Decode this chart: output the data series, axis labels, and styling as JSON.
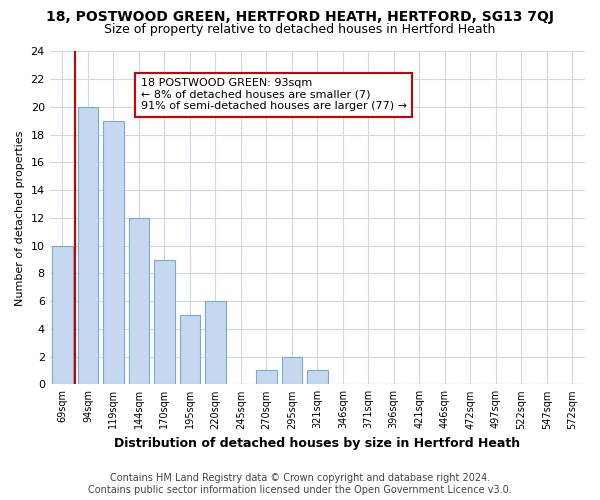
{
  "title1": "18, POSTWOOD GREEN, HERTFORD HEATH, HERTFORD, SG13 7QJ",
  "title2": "Size of property relative to detached houses in Hertford Heath",
  "xlabel": "Distribution of detached houses by size in Hertford Heath",
  "ylabel": "Number of detached properties",
  "categories": [
    "69sqm",
    "94sqm",
    "119sqm",
    "144sqm",
    "170sqm",
    "195sqm",
    "220sqm",
    "245sqm",
    "270sqm",
    "295sqm",
    "321sqm",
    "346sqm",
    "371sqm",
    "396sqm",
    "421sqm",
    "446sqm",
    "472sqm",
    "497sqm",
    "522sqm",
    "547sqm",
    "572sqm"
  ],
  "values": [
    10,
    20,
    19,
    12,
    9,
    5,
    6,
    0,
    1,
    2,
    1,
    0,
    0,
    0,
    0,
    0,
    0,
    0,
    0,
    0,
    0
  ],
  "bar_color": "#c5d8f0",
  "bar_edge_color": "#7aaad0",
  "vline_x": 1,
  "annotation_text": "18 POSTWOOD GREEN: 93sqm\n← 8% of detached houses are smaller (7)\n91% of semi-detached houses are larger (77) →",
  "annotation_box_color": "#ffffff",
  "annotation_box_edge_color": "#cc0000",
  "vline_color": "#cc0000",
  "ylim": [
    0,
    24
  ],
  "yticks": [
    0,
    2,
    4,
    6,
    8,
    10,
    12,
    14,
    16,
    18,
    20,
    22,
    24
  ],
  "footer1": "Contains HM Land Registry data © Crown copyright and database right 2024.",
  "footer2": "Contains public sector information licensed under the Open Government Licence v3.0.",
  "background_color": "#ffffff",
  "plot_bg_color": "#ffffff",
  "grid_color": "#d0d8e8",
  "title1_fontsize": 10,
  "title2_fontsize": 9,
  "xlabel_fontsize": 9,
  "ylabel_fontsize": 8,
  "annotation_fontsize": 8,
  "footer_fontsize": 7,
  "bar_width": 0.8
}
